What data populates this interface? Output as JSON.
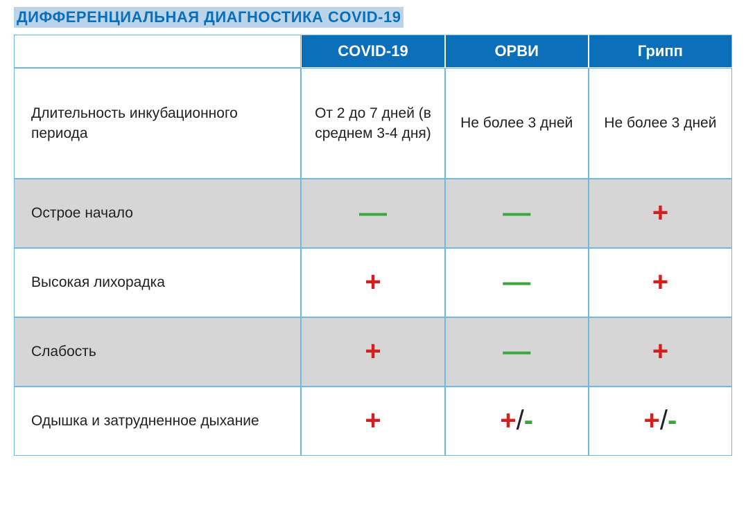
{
  "title": "ДИФФЕРЕНЦИАЛЬНАЯ ДИАГНОСТИКА COVID-19",
  "table": {
    "type": "table",
    "header_bg": "#0a6fb8",
    "header_fg": "#ffffff",
    "border_color": "#6fb8e0",
    "shaded_row_bg": "#d6d6d6",
    "plain_row_bg": "#ffffff",
    "plus_color": "#d21f1f",
    "minus_color": "#3aa53a",
    "title_color": "#0a6fb8",
    "title_bg": "#bcd4ea",
    "columns": [
      "",
      "COVID-19",
      "ОРВИ",
      "Грипп"
    ],
    "column_widths_pct": [
      40,
      20,
      20,
      20
    ],
    "rows": [
      {
        "label": "Длительность инкубационного периода",
        "shaded": false,
        "tall": true,
        "cells": [
          {
            "kind": "text",
            "value": "От 2 до 7 дней (в среднем 3-4 дня)"
          },
          {
            "kind": "text",
            "value": "Не более 3 дней"
          },
          {
            "kind": "text",
            "value": "Не более 3 дней"
          }
        ]
      },
      {
        "label": "Острое начало",
        "shaded": true,
        "tall": false,
        "cells": [
          {
            "kind": "minus"
          },
          {
            "kind": "minus"
          },
          {
            "kind": "plus"
          }
        ]
      },
      {
        "label": "Высокая лихорадка",
        "shaded": false,
        "tall": false,
        "cells": [
          {
            "kind": "plus"
          },
          {
            "kind": "minus"
          },
          {
            "kind": "plus"
          }
        ]
      },
      {
        "label": "Слабость",
        "shaded": true,
        "tall": false,
        "cells": [
          {
            "kind": "plus"
          },
          {
            "kind": "minus"
          },
          {
            "kind": "plus"
          }
        ]
      },
      {
        "label": "Одышка и затрудненное дыхание",
        "shaded": false,
        "tall": false,
        "cells": [
          {
            "kind": "plus"
          },
          {
            "kind": "plusminus"
          },
          {
            "kind": "plusminus"
          }
        ]
      }
    ]
  }
}
